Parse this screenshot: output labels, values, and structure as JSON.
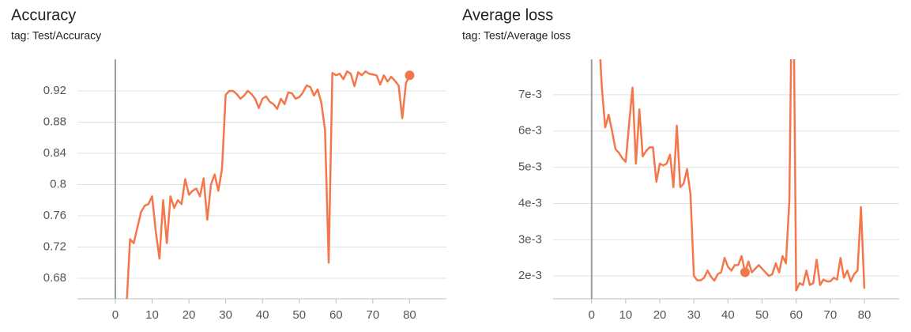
{
  "chart_data": [
    {
      "type": "line",
      "title": "Accuracy",
      "subtitle": "tag: Test/Accuracy",
      "color": "#f4774c",
      "x": [
        3,
        4,
        5,
        6,
        7,
        8,
        9,
        10,
        11,
        12,
        13,
        14,
        15,
        16,
        17,
        18,
        19,
        20,
        21,
        22,
        23,
        24,
        25,
        26,
        27,
        28,
        29,
        30,
        31,
        32,
        33,
        34,
        35,
        36,
        37,
        38,
        39,
        40,
        41,
        42,
        43,
        44,
        45,
        46,
        47,
        48,
        49,
        50,
        51,
        52,
        53,
        54,
        55,
        56,
        57,
        58,
        59,
        60,
        61,
        62,
        63,
        64,
        65,
        66,
        67,
        68,
        69,
        70,
        71,
        72,
        73,
        74,
        75,
        76,
        77,
        78,
        79,
        80
      ],
      "values": [
        0.64,
        0.73,
        0.725,
        0.745,
        0.765,
        0.773,
        0.775,
        0.785,
        0.74,
        0.705,
        0.78,
        0.725,
        0.785,
        0.77,
        0.78,
        0.775,
        0.807,
        0.787,
        0.792,
        0.795,
        0.785,
        0.808,
        0.755,
        0.8,
        0.813,
        0.792,
        0.82,
        0.915,
        0.92,
        0.92,
        0.916,
        0.91,
        0.914,
        0.92,
        0.916,
        0.91,
        0.898,
        0.91,
        0.913,
        0.906,
        0.903,
        0.897,
        0.91,
        0.903,
        0.918,
        0.917,
        0.91,
        0.912,
        0.918,
        0.927,
        0.925,
        0.914,
        0.922,
        0.905,
        0.87,
        0.7,
        0.943,
        0.94,
        0.942,
        0.935,
        0.945,
        0.942,
        0.926,
        0.944,
        0.94,
        0.945,
        0.942,
        0.941,
        0.94,
        0.928,
        0.94,
        0.932,
        0.938,
        0.933,
        0.927,
        0.885,
        0.93,
        0.94
      ],
      "xlim": [
        -10.3,
        90
      ],
      "ylim": [
        0.6537,
        0.9605
      ],
      "xticks": [
        0,
        10,
        20,
        30,
        40,
        50,
        60,
        70,
        80
      ],
      "yticks": [
        0.68,
        0.72,
        0.76,
        0.8,
        0.84,
        0.88,
        0.92
      ],
      "grid": true,
      "highlight_x": 80
    },
    {
      "type": "line",
      "title": "Average loss",
      "subtitle": "tag: Test/Average loss",
      "color": "#f4774c",
      "x": [
        2,
        3,
        4,
        5,
        6,
        7,
        8,
        9,
        10,
        11,
        12,
        13,
        14,
        15,
        16,
        17,
        18,
        19,
        20,
        21,
        22,
        23,
        24,
        25,
        26,
        27,
        28,
        29,
        30,
        31,
        32,
        33,
        34,
        35,
        36,
        37,
        38,
        39,
        40,
        41,
        42,
        43,
        44,
        45,
        46,
        47,
        48,
        49,
        50,
        51,
        52,
        53,
        54,
        55,
        56,
        57,
        58,
        59,
        60,
        61,
        62,
        63,
        64,
        65,
        66,
        67,
        68,
        69,
        70,
        71,
        72,
        73,
        74,
        75,
        76,
        77,
        78,
        79,
        80
      ],
      "values": [
        0.009,
        0.0072,
        0.0061,
        0.00645,
        0.006,
        0.0055,
        0.0054,
        0.00525,
        0.00515,
        0.0062,
        0.0072,
        0.0051,
        0.0066,
        0.0053,
        0.00545,
        0.00555,
        0.00555,
        0.0046,
        0.0051,
        0.00505,
        0.0051,
        0.00535,
        0.00445,
        0.00615,
        0.00445,
        0.00455,
        0.00495,
        0.00425,
        0.002,
        0.00188,
        0.00188,
        0.00195,
        0.00215,
        0.00198,
        0.00187,
        0.00205,
        0.0021,
        0.0025,
        0.00225,
        0.00215,
        0.0023,
        0.0023,
        0.00255,
        0.0021,
        0.0024,
        0.0021,
        0.0022,
        0.0023,
        0.0022,
        0.0021,
        0.002,
        0.00205,
        0.00235,
        0.0021,
        0.00255,
        0.00235,
        0.0041,
        0.012,
        0.0016,
        0.0018,
        0.00175,
        0.00215,
        0.00175,
        0.0018,
        0.00245,
        0.00175,
        0.0019,
        0.00185,
        0.00185,
        0.00195,
        0.0019,
        0.0025,
        0.00195,
        0.00215,
        0.00185,
        0.00205,
        0.00215,
        0.0039,
        0.00165
      ],
      "xlim": [
        -11.3,
        90.2
      ],
      "ylim": [
        0.00137,
        0.00798
      ],
      "xticks": [
        0,
        10,
        20,
        30,
        40,
        50,
        60,
        70,
        80
      ],
      "yticks": [
        {
          "value": 0.002,
          "label": "2e-3"
        },
        {
          "value": 0.003,
          "label": "3e-3"
        },
        {
          "value": 0.004,
          "label": "4e-3"
        },
        {
          "value": 0.005,
          "label": "5e-3"
        },
        {
          "value": 0.006,
          "label": "6e-3"
        },
        {
          "value": 0.007,
          "label": "7e-3"
        }
      ],
      "grid": true,
      "highlight_x": 45
    }
  ]
}
